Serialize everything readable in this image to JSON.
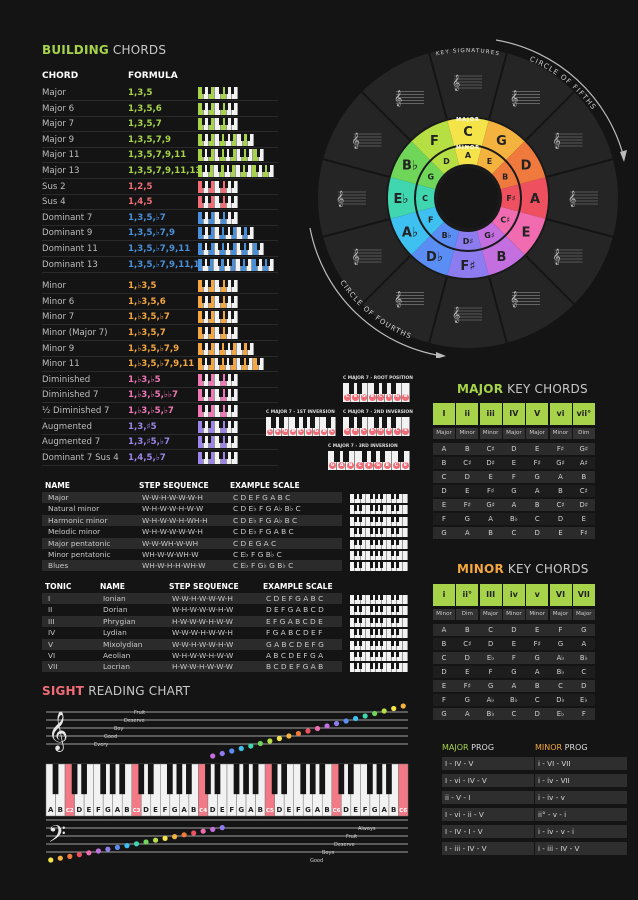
{
  "building": {
    "title_hl": "BUILDING",
    "title_rest": " CHORDS",
    "col_chord": "CHORD",
    "col_formula": "FORMULA",
    "rows": [
      {
        "name": "Major",
        "formula": "1,3,5",
        "color": "#a6d34a",
        "w": 40
      },
      {
        "name": "Major 6",
        "formula": "1,3,5,6",
        "color": "#a6d34a",
        "w": 40
      },
      {
        "name": "Major 7",
        "formula": "1,3,5,7",
        "color": "#a6d34a",
        "w": 40
      },
      {
        "name": "Major 9",
        "formula": "1,3,5,7,9",
        "color": "#a6d34a",
        "w": 56
      },
      {
        "name": "Major 11",
        "formula": "1,3,5,7,9,11",
        "color": "#a6d34a",
        "w": 66
      },
      {
        "name": "Major 13",
        "formula": "1,3,5,7,9,11,13",
        "color": "#a6d34a",
        "w": 76
      },
      {
        "name": "Sus 2",
        "formula": "1,2,5",
        "color": "#f06d78",
        "w": 40
      },
      {
        "name": "Sus 4",
        "formula": "1,4,5",
        "color": "#f06d78",
        "w": 40
      },
      {
        "name": "Dominant 7",
        "formula": "1,3,5,♭7",
        "color": "#4a90d9",
        "w": 40
      },
      {
        "name": "Dominant 9",
        "formula": "1,3,5,♭7,9",
        "color": "#4a90d9",
        "w": 56
      },
      {
        "name": "Dominant 11",
        "formula": "1,3,5,♭7,9,11",
        "color": "#4a90d9",
        "w": 66
      },
      {
        "name": "Dominant 13",
        "formula": "1,3,5,♭7,9,11,13",
        "color": "#4a90d9",
        "w": 76
      },
      {
        "name": "Minor",
        "formula": "1,♭3,5",
        "color": "#f4a640",
        "w": 40
      },
      {
        "name": "Minor 6",
        "formula": "1,♭3,5,6",
        "color": "#f4a640",
        "w": 40
      },
      {
        "name": "Minor 7",
        "formula": "1,♭3,5,♭7",
        "color": "#f4a640",
        "w": 40
      },
      {
        "name": "Minor (Major 7)",
        "formula": "1,♭3,5,7",
        "color": "#f4a640",
        "w": 40
      },
      {
        "name": "Minor 9",
        "formula": "1,♭3,5,♭7,9",
        "color": "#f4a640",
        "w": 56
      },
      {
        "name": "Minor 11",
        "formula": "1,♭3,5,♭7,9,11",
        "color": "#f4a640",
        "w": 66
      },
      {
        "name": "Diminished",
        "formula": "1,♭3,♭5",
        "color": "#f078b4",
        "w": 40
      },
      {
        "name": "Diminished 7",
        "formula": "1,♭3,♭5,♭♭7",
        "color": "#f078b4",
        "w": 40
      },
      {
        "name": "½ Diminished 7",
        "formula": "1,♭3,♭5,♭7",
        "color": "#f078b4",
        "w": 40
      },
      {
        "name": "Augmented",
        "formula": "1,3,♯5",
        "color": "#9b86e8",
        "w": 40
      },
      {
        "name": "Augmented 7",
        "formula": "1,3,♯5,♭7",
        "color": "#9b86e8",
        "w": 40
      },
      {
        "name": "Dominant 7 Sus 4",
        "formula": "1,4,5,♭7",
        "color": "#9b86e8",
        "w": 40
      }
    ]
  },
  "inversions": {
    "root": {
      "label": "C MAJOR 7 - ROOT POSITION",
      "notes": [
        "C",
        "E",
        "G",
        "B",
        "C",
        "E",
        "G",
        "B"
      ]
    },
    "first": {
      "label": "C MAJOR 7 - 1ST INVERSION",
      "notes": [
        "C",
        "E",
        "G",
        "B",
        "C",
        "E",
        "G",
        "B",
        "C"
      ]
    },
    "second": {
      "label": "C MAJOR 7 - 2ND INVERSION",
      "notes": [
        "G",
        "B",
        "C",
        "E",
        "G",
        "B",
        "C",
        "E"
      ]
    },
    "third": {
      "label": "C MAJOR 7 - 3RD INVERSION",
      "notes": [
        "G",
        "A",
        "B",
        "C",
        "E",
        "G",
        "B",
        "C",
        "E"
      ]
    }
  },
  "scales": {
    "headers": [
      "NAME",
      "STEP SEQUENCE",
      "EXAMPLE SCALE"
    ],
    "rows": [
      [
        "Major",
        "W-W-H-W-W-W-H",
        "C D E F G A B C"
      ],
      [
        "Natural minor",
        "W-H-W-W-H-W-W",
        "C D E♭ F G A♭ B♭ C"
      ],
      [
        "Harmonic minor",
        "W-H-W-W-H-WH-H",
        "C D E♭ F G A♭ B C"
      ],
      [
        "Melodic minor",
        "W-H-W-W-W-W-H",
        "C D E♭ F G A B C"
      ],
      [
        "Major pentatonic",
        "W-W-WH-W-WH",
        "C D E G A C"
      ],
      [
        "Minor pentatonic",
        "WH-W-W-WH-W",
        "C E♭ F G B♭ C"
      ],
      [
        "Blues",
        "WH-W-H-H-WH-W",
        "C E♭ F G♭ G B♭ C"
      ]
    ]
  },
  "modes": {
    "headers": [
      "TONIC",
      "NAME",
      "STEP SEQUENCE",
      "EXAMPLE SCALE"
    ],
    "rows": [
      [
        "I",
        "Ionian",
        "W-W-H-W-W-W-H",
        "C D E F G A B C"
      ],
      [
        "II",
        "Dorian",
        "W-H-W-W-W-H-W",
        "D E F G A B C D"
      ],
      [
        "III",
        "Phrygian",
        "H-W-W-W-H-W-W",
        "E F G A B C D E"
      ],
      [
        "IV",
        "Lydian",
        "W-W-W-H-W-W-H",
        "F G A B C D E F"
      ],
      [
        "V",
        "Mixolydian",
        "W-W-H-W-W-H-W",
        "G A B C D E F G"
      ],
      [
        "VI",
        "Aeolian",
        "W-H-W-W-H-W-W",
        "A B C D E F G A"
      ],
      [
        "VII",
        "Locrian",
        "H-W-W-H-W-W-W",
        "B C D E F G A B"
      ]
    ]
  },
  "circle": {
    "key_signatures": "KEY SIGNATURES",
    "fifths": "CIRCLE OF FIFTHS",
    "fourths": "CIRCLE OF FOURTHS",
    "major_label": "MAJOR",
    "minor_label": "MINOR",
    "major_keys": [
      "C",
      "G",
      "D",
      "A",
      "E",
      "B",
      "F♯",
      "D♭",
      "A♭",
      "E♭",
      "B♭",
      "F"
    ],
    "minor_keys": [
      "A",
      "E",
      "B",
      "F♯",
      "C♯",
      "G♯",
      "D♯",
      "B♭",
      "F",
      "C",
      "G",
      "D"
    ],
    "colors": [
      "#f4e44a",
      "#f4b23f",
      "#f07a3e",
      "#ef5060",
      "#f06bb0",
      "#c46fe0",
      "#8c7cf0",
      "#5a8ef5",
      "#3ec0f0",
      "#3fd6b0",
      "#6fd65a",
      "#b6df44"
    ]
  },
  "major_key": {
    "title_hl": "MAJOR",
    "title_rest": " KEY CHORDS",
    "numerals": [
      "I",
      "ii",
      "iii",
      "IV",
      "V",
      "vi",
      "vii°"
    ],
    "qualities": [
      "Major",
      "Minor",
      "Minor",
      "Major",
      "Major",
      "Minor",
      "Dim"
    ],
    "colors": [
      "#a6d34a",
      "#a6d34a",
      "#a6d34a",
      "#a6d34a",
      "#a6d34a",
      "#a6d34a",
      "#a6d34a"
    ],
    "rows": [
      [
        "A",
        "B",
        "C♯",
        "D",
        "E",
        "F♯",
        "G♯"
      ],
      [
        "B",
        "C♯",
        "D♯",
        "E",
        "F♯",
        "G♯",
        "A♯"
      ],
      [
        "C",
        "D",
        "E",
        "F",
        "G",
        "A",
        "B"
      ],
      [
        "D",
        "E",
        "F♯",
        "G",
        "A",
        "B",
        "C♯"
      ],
      [
        "E",
        "F♯",
        "G♯",
        "A",
        "B",
        "C♯",
        "D♯"
      ],
      [
        "F",
        "G",
        "A",
        "B♭",
        "C",
        "D",
        "E"
      ],
      [
        "G",
        "A",
        "B",
        "C",
        "D",
        "E",
        "F♯"
      ]
    ]
  },
  "minor_key": {
    "title_hl": "MINOR",
    "title_rest": " KEY CHORDS",
    "numerals": [
      "i",
      "ii°",
      "III",
      "iv",
      "v",
      "VI",
      "VII"
    ],
    "qualities": [
      "Minor",
      "Dim",
      "Major",
      "Minor",
      "Minor",
      "Major",
      "Major"
    ],
    "rows": [
      [
        "A",
        "B",
        "C",
        "D",
        "E",
        "F",
        "G"
      ],
      [
        "B",
        "C♯",
        "D",
        "E",
        "F♯",
        "G",
        "A"
      ],
      [
        "C",
        "D",
        "E♭",
        "F",
        "G",
        "A♭",
        "B♭"
      ],
      [
        "D",
        "E",
        "F",
        "G",
        "A",
        "B♭",
        "C"
      ],
      [
        "E",
        "F♯",
        "G",
        "A",
        "B",
        "C",
        "D"
      ],
      [
        "F",
        "G",
        "A♭",
        "B♭",
        "C",
        "D♭",
        "E♭"
      ],
      [
        "G",
        "A",
        "B♭",
        "C",
        "D",
        "E♭",
        "F"
      ]
    ]
  },
  "progs": {
    "major_hl": "MAJOR",
    "minor_hl": "MINOR",
    "suffix": " PROG",
    "major": [
      "I - IV - V",
      "I - vi - IV - V",
      "ii - V - I",
      "I - vi - ii - V",
      "I - IV - I - V",
      "I - iii - IV - V"
    ],
    "minor": [
      "i - VI - VII",
      "i - iv - VII",
      "i - iv - v",
      "ii° - v - i",
      "i - iv - v - i",
      "i - iii - IV - V"
    ]
  },
  "sight": {
    "title_hl": "SIGHT",
    "title_rest": " READING CHART",
    "treble_words": [
      "Fruit",
      "Deserve",
      "Boy",
      "Good",
      "Every"
    ],
    "bass_words": [
      "Always",
      "Fruit",
      "Deserve",
      "Boys",
      "Good"
    ],
    "keys": [
      "A",
      "B",
      "C",
      "D",
      "E",
      "F",
      "G",
      "A",
      "B",
      "C",
      "D",
      "E",
      "F",
      "G",
      "A",
      "B",
      "C",
      "D",
      "E",
      "F",
      "G",
      "A",
      "B",
      "C",
      "D",
      "E",
      "F",
      "G",
      "A",
      "B",
      "C",
      "D",
      "E",
      "F",
      "G",
      "A",
      "B",
      "C"
    ],
    "c_labels": [
      "C2",
      "C3",
      "C4",
      "C5",
      "C6"
    ]
  }
}
